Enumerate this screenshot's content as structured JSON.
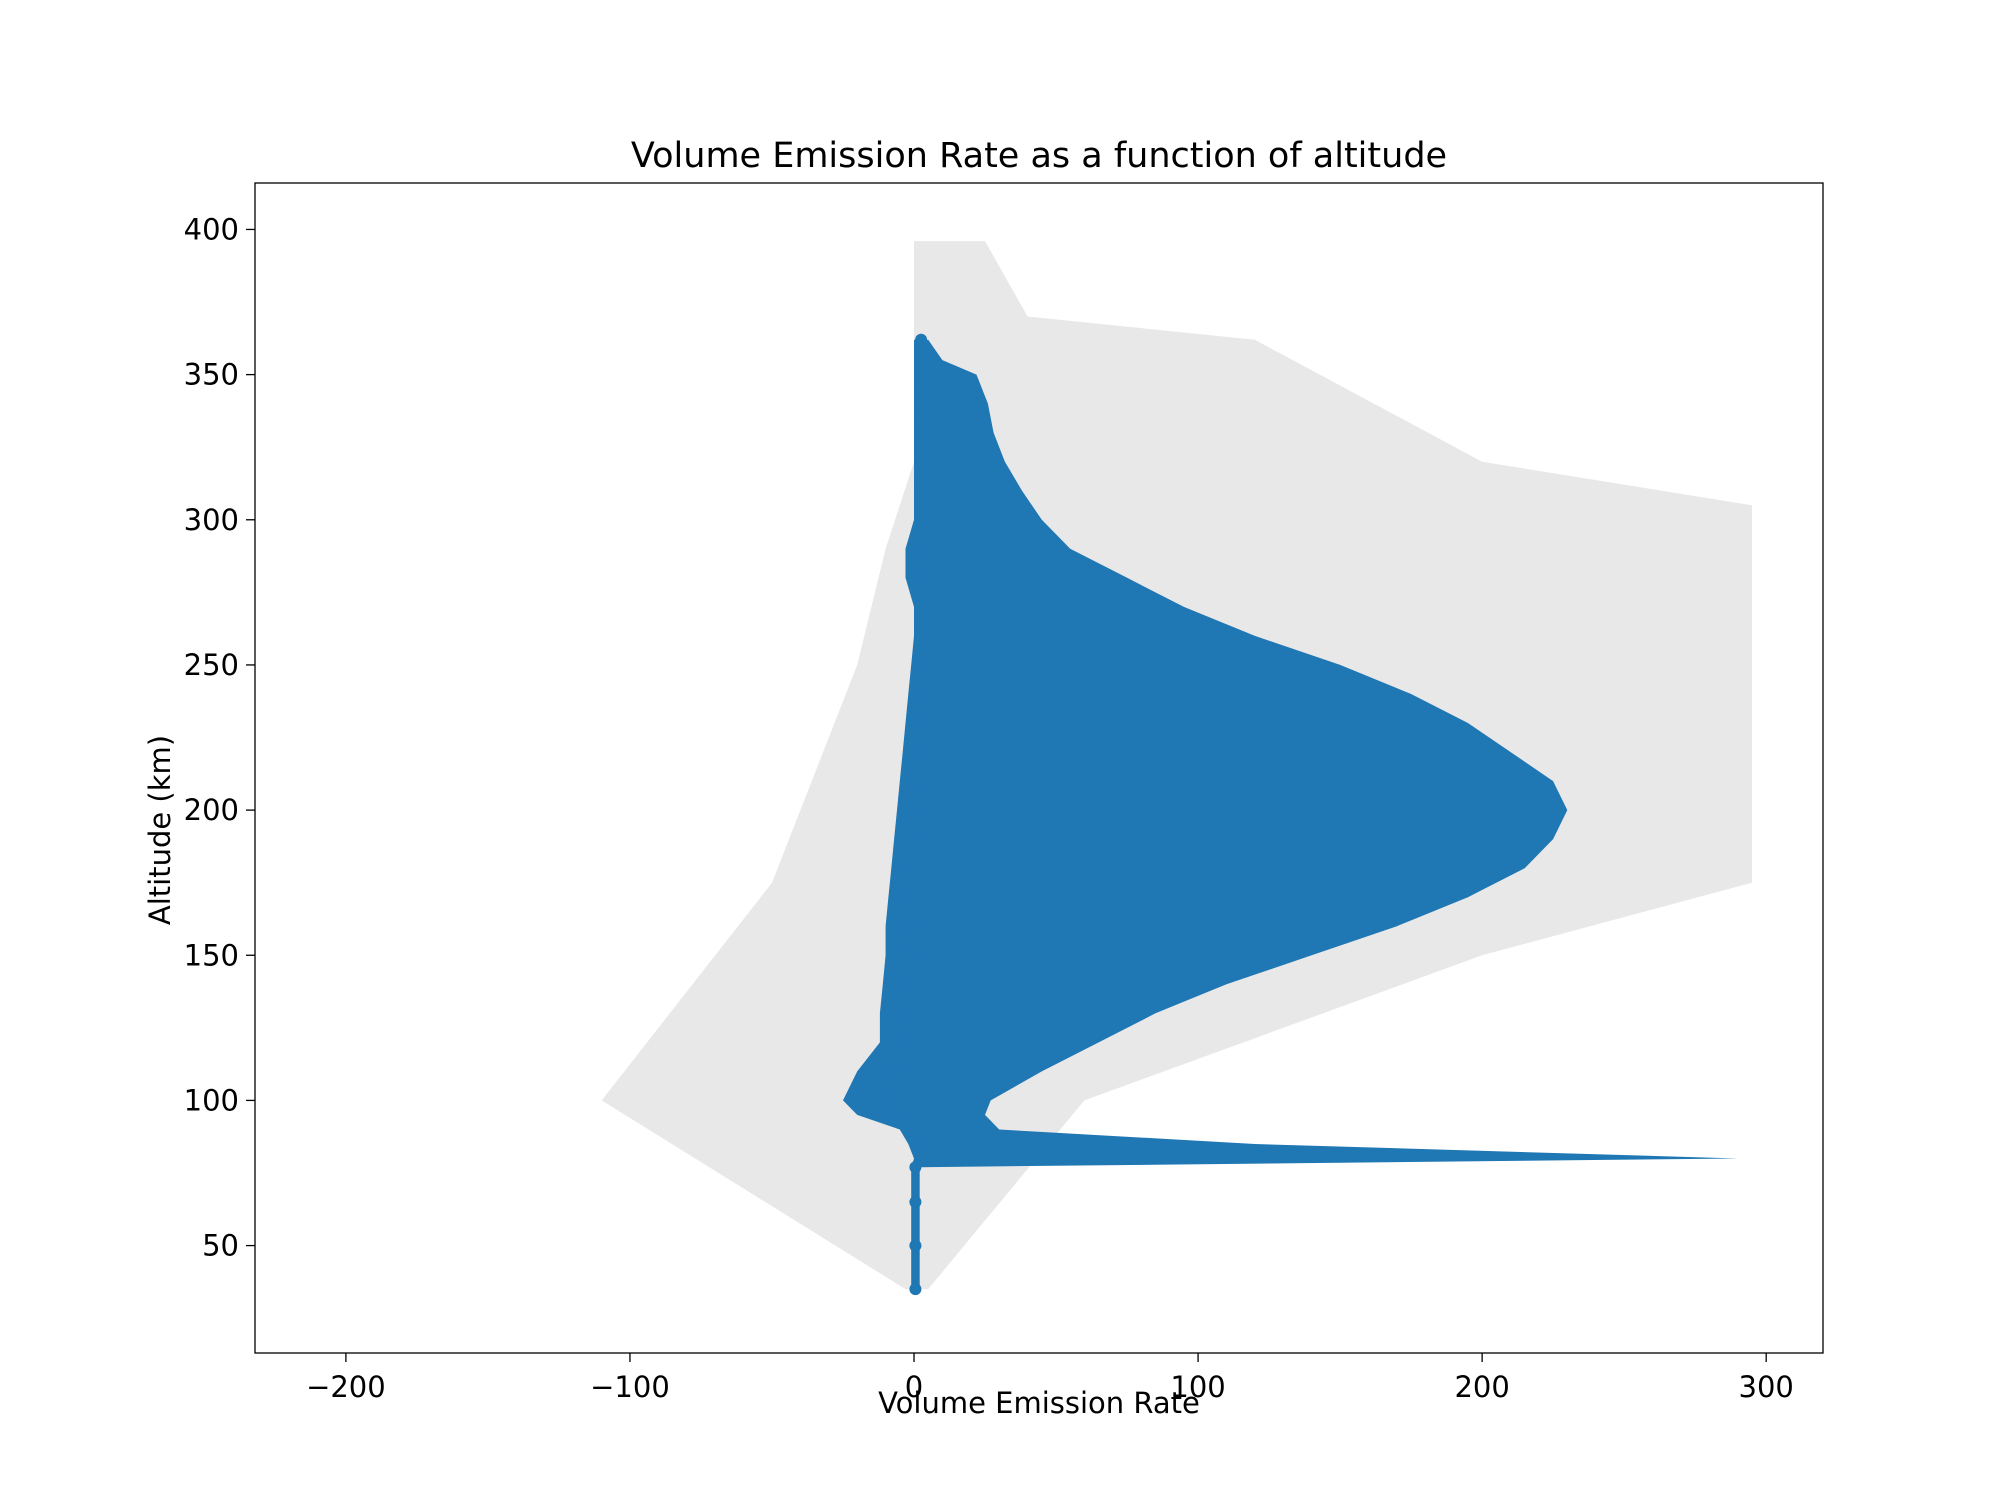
{
  "chart_data": {
    "type": "scatter",
    "title": "Volume Emission Rate as a function of altitude",
    "xlabel": "Volume Emission Rate",
    "ylabel": "Altitude (km)",
    "xlim": [
      -232,
      320
    ],
    "ylim": [
      13,
      416
    ],
    "xticks": [
      -200,
      -100,
      0,
      100,
      200,
      300
    ],
    "xtick_labels": [
      "−200",
      "−100",
      "0",
      "100",
      "200",
      "300"
    ],
    "yticks": [
      50,
      100,
      150,
      200,
      250,
      300,
      350,
      400
    ],
    "ytick_labels": [
      "50",
      "100",
      "150",
      "200",
      "250",
      "300",
      "350",
      "400"
    ],
    "grid": false,
    "colors": {
      "points": "#1f77b4",
      "faint_points": "#000000",
      "axes": "#000000"
    },
    "series": [
      {
        "values": [
          {
            "alt": 35,
            "vmin": -1,
            "vmax": 2
          },
          {
            "alt": 50,
            "vmin": -1,
            "vmax": 2
          },
          {
            "alt": 65,
            "vmin": -1,
            "vmax": 2
          },
          {
            "alt": 77,
            "vmin": -1,
            "vmax": 2
          },
          {
            "alt": 80,
            "vmin": 0,
            "vmax": 290
          },
          {
            "alt": 85,
            "vmin": -2,
            "vmax": 120
          },
          {
            "alt": 90,
            "vmin": -5,
            "vmax": 30
          },
          {
            "alt": 95,
            "vmin": -20,
            "vmax": 25
          },
          {
            "alt": 100,
            "vmin": -25,
            "vmax": 27
          },
          {
            "alt": 110,
            "vmin": -20,
            "vmax": 45
          },
          {
            "alt": 120,
            "vmin": -12,
            "vmax": 65
          },
          {
            "alt": 130,
            "vmin": -12,
            "vmax": 85
          },
          {
            "alt": 140,
            "vmin": -11,
            "vmax": 110
          },
          {
            "alt": 150,
            "vmin": -10,
            "vmax": 140
          },
          {
            "alt": 160,
            "vmin": -10,
            "vmax": 170
          },
          {
            "alt": 170,
            "vmin": -9,
            "vmax": 195
          },
          {
            "alt": 180,
            "vmin": -8,
            "vmax": 215
          },
          {
            "alt": 190,
            "vmin": -7,
            "vmax": 225
          },
          {
            "alt": 200,
            "vmin": -6,
            "vmax": 230
          },
          {
            "alt": 210,
            "vmin": -5,
            "vmax": 225
          },
          {
            "alt": 220,
            "vmin": -4,
            "vmax": 210
          },
          {
            "alt": 230,
            "vmin": -3,
            "vmax": 195
          },
          {
            "alt": 240,
            "vmin": -2,
            "vmax": 175
          },
          {
            "alt": 250,
            "vmin": -1,
            "vmax": 150
          },
          {
            "alt": 260,
            "vmin": 0,
            "vmax": 120
          },
          {
            "alt": 270,
            "vmin": 0,
            "vmax": 95
          },
          {
            "alt": 280,
            "vmin": -3,
            "vmax": 75
          },
          {
            "alt": 290,
            "vmin": -3,
            "vmax": 55
          },
          {
            "alt": 300,
            "vmin": 0,
            "vmax": 45
          },
          {
            "alt": 310,
            "vmin": 0,
            "vmax": 38
          },
          {
            "alt": 320,
            "vmin": 0,
            "vmax": 32
          },
          {
            "alt": 330,
            "vmin": 0,
            "vmax": 28
          },
          {
            "alt": 340,
            "vmin": 0,
            "vmax": 26
          },
          {
            "alt": 350,
            "vmin": 0,
            "vmax": 22
          },
          {
            "alt": 355,
            "vmin": 0,
            "vmax": 10
          },
          {
            "alt": 362,
            "vmin": 0,
            "vmax": 5
          }
        ]
      },
      {
        "values": [
          {
            "alt": 35,
            "vmin": -3,
            "vmax": 5
          },
          {
            "alt": 100,
            "vmin": -110,
            "vmax": 60
          },
          {
            "alt": 150,
            "vmin": -70,
            "vmax": 200
          },
          {
            "alt": 175,
            "vmin": -50,
            "vmax": 295
          },
          {
            "alt": 200,
            "vmin": -40,
            "vmax": 295
          },
          {
            "alt": 250,
            "vmin": -20,
            "vmax": 295
          },
          {
            "alt": 290,
            "vmin": -10,
            "vmax": 295
          },
          {
            "alt": 305,
            "vmin": -5,
            "vmax": 295
          },
          {
            "alt": 320,
            "vmin": 0,
            "vmax": 200
          },
          {
            "alt": 362,
            "vmin": 0,
            "vmax": 120
          },
          {
            "alt": 370,
            "vmin": 0,
            "vmax": 40
          },
          {
            "alt": 396,
            "vmin": 0,
            "vmax": 25
          }
        ]
      }
    ]
  }
}
